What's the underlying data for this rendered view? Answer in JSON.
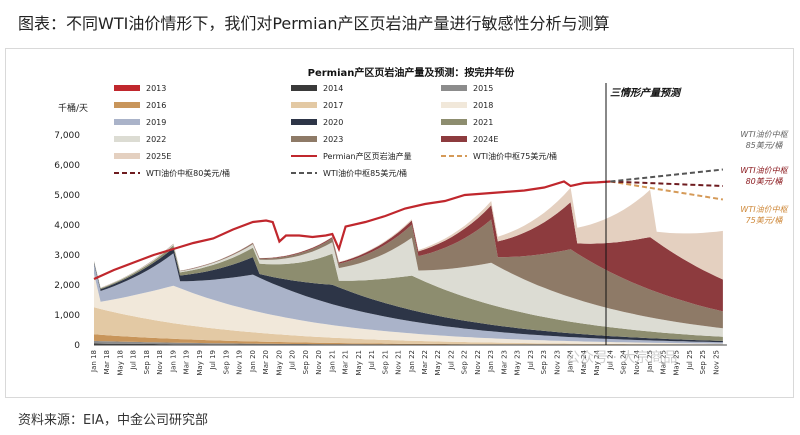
{
  "header": {
    "title": "图表：不同WTI油价情形下，我们对Permian产区页岩油产量进行敏感性分析与测算"
  },
  "source": "资料来源：EIA，中金公司研究部",
  "watermark": "公众号 · 大宗商品",
  "chart_data": {
    "type": "area",
    "title": "Permian产区页岩油产量及预测：按完井年份",
    "ylabel": "千桶/天",
    "ylim": [
      0,
      7000
    ],
    "yticks": [
      "0",
      "1,000",
      "2,000",
      "3,000",
      "4,000",
      "5,000",
      "6,000",
      "7,000"
    ],
    "x_range": [
      "2018-01",
      "2025-12"
    ],
    "x_ticks": [
      "Jan 18",
      "Mar 18",
      "May 18",
      "Jul 18",
      "Sep 18",
      "Nov 18",
      "Jan 19",
      "Mar 19",
      "May 19",
      "Jul 19",
      "Sep 19",
      "Nov 19",
      "Jan 20",
      "Mar 20",
      "May 20",
      "Jul 20",
      "Sep 20",
      "Nov 20",
      "Jan 21",
      "Mar 21",
      "May 21",
      "Jul 21",
      "Sep 21",
      "Nov 21",
      "Jan 22",
      "Mar 22",
      "May 22",
      "Jul 22",
      "Sep 22",
      "Nov 22",
      "Jan 23",
      "Mar 23",
      "May 23",
      "Jul 23",
      "Sep 23",
      "Nov 23",
      "Jan 24",
      "Mar 24",
      "May 24",
      "Jul 24",
      "Sep 24",
      "Nov 24",
      "Jan 25",
      "Mar 25",
      "May 25",
      "Jul 25",
      "Sep 25",
      "Nov 25"
    ],
    "forecast_label": "三情形产量预测",
    "forecast_start": "2024-07",
    "vintages": [
      {
        "name": "2013",
        "color": "#c0272d",
        "peak": 120,
        "start": "2013-01"
      },
      {
        "name": "2014",
        "color": "#3a3a3a",
        "peak": 180,
        "start": "2014-01"
      },
      {
        "name": "2015",
        "color": "#8c8c8c",
        "peak": 260,
        "start": "2015-01"
      },
      {
        "name": "2016",
        "color": "#c8955a",
        "peak": 380,
        "start": "2016-01"
      },
      {
        "name": "2017",
        "color": "#e3c9a4",
        "peak": 900,
        "start": "2017-01"
      },
      {
        "name": "2018",
        "color": "#f1e8da",
        "peak": 1250,
        "start": "2018-01"
      },
      {
        "name": "2019",
        "color": "#aab3c9",
        "peak": 1200,
        "start": "2019-01"
      },
      {
        "name": "2020",
        "color": "#2d3547",
        "peak": 650,
        "start": "2020-01"
      },
      {
        "name": "2021",
        "color": "#8d8d6f",
        "peak": 1150,
        "start": "2021-01"
      },
      {
        "name": "2022",
        "color": "#dcdcd3",
        "peak": 1400,
        "start": "2022-01"
      },
      {
        "name": "2023",
        "color": "#8e7a67",
        "peak": 1600,
        "start": "2023-01"
      },
      {
        "name": "2024E",
        "color": "#8d3b3e",
        "peak": 1750,
        "start": "2024-01"
      },
      {
        "name": "2025E",
        "color": "#e4d0c0",
        "peak": 1750,
        "start": "2025-01"
      }
    ],
    "series": [
      {
        "name": "Permian产区页岩油产量",
        "color": "#c0272d",
        "x": [
          "2018-01",
          "2018-04",
          "2018-07",
          "2018-10",
          "2019-01",
          "2019-04",
          "2019-07",
          "2019-10",
          "2020-01",
          "2020-03",
          "2020-04",
          "2020-05",
          "2020-06",
          "2020-08",
          "2020-10",
          "2020-12",
          "2021-01",
          "2021-02",
          "2021-03",
          "2021-06",
          "2021-09",
          "2021-12",
          "2022-03",
          "2022-06",
          "2022-09",
          "2022-12",
          "2023-03",
          "2023-06",
          "2023-09",
          "2023-12",
          "2024-01",
          "2024-03",
          "2024-05",
          "2024-07"
        ],
        "values": [
          2200,
          2500,
          2750,
          3000,
          3200,
          3400,
          3550,
          3850,
          4100,
          4150,
          4100,
          3450,
          3650,
          3650,
          3600,
          3650,
          3700,
          3200,
          3950,
          4100,
          4300,
          4550,
          4700,
          4800,
          5000,
          5050,
          5100,
          5150,
          5250,
          5450,
          5300,
          5400,
          5420,
          5450
        ]
      },
      {
        "name": "WTI油价中枢75美元/桶",
        "color": "#d59a58",
        "dash": "5,3",
        "x": [
          "2024-07",
          "2025-12"
        ],
        "values": [
          5450,
          4850
        ]
      },
      {
        "name": "WTI油价中枢80美元/桶",
        "color": "#6e1b1f",
        "dash": "5,3",
        "x": [
          "2024-07",
          "2025-12"
        ],
        "values": [
          5450,
          5300
        ]
      },
      {
        "name": "WTI油价中枢85美元/桶",
        "color": "#555555",
        "dash": "5,3",
        "x": [
          "2024-07",
          "2025-12"
        ],
        "values": [
          5450,
          5850
        ]
      }
    ],
    "annotations": [
      {
        "text": [
          "WTI油价中枢",
          "85美元/桶"
        ],
        "color": "#666666"
      },
      {
        "text": [
          "WTI油价中枢",
          "80美元/桶"
        ],
        "color": "#8b1a1f"
      },
      {
        "text": [
          "WTI油价中枢",
          "75美元/桶"
        ],
        "color": "#cf8a3c"
      }
    ]
  }
}
